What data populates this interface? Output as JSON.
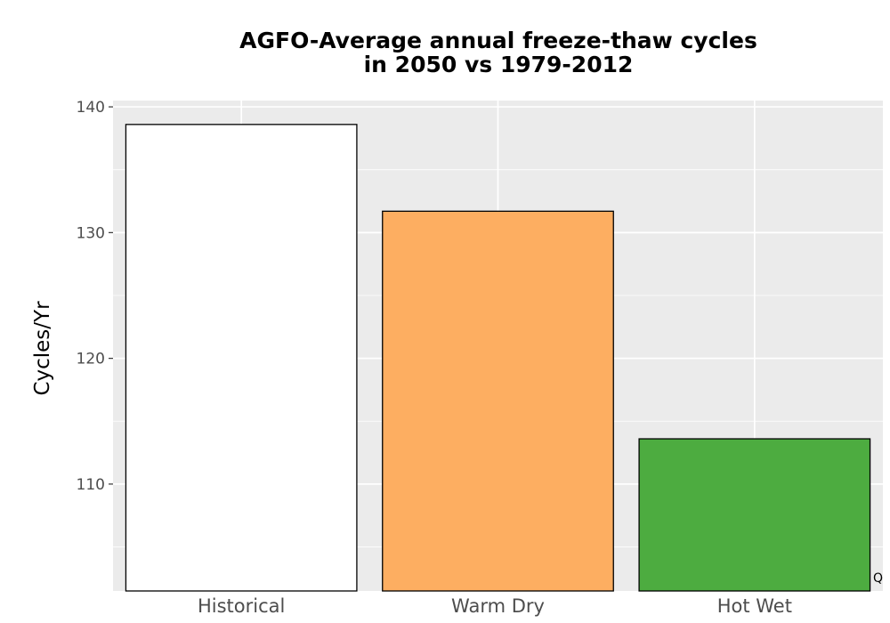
{
  "chart_data": {
    "type": "bar",
    "title": "AGFO-Average annual freeze-thaw cycles\nin 2050 vs 1979-2012",
    "xlabel": "",
    "ylabel": "Cycles/Yr",
    "categories": [
      "Historical",
      "Warm Dry",
      "Hot Wet"
    ],
    "values": [
      138.6,
      131.7,
      113.6
    ],
    "colors": [
      "#ffffff",
      "#fdae61",
      "#4dac40"
    ],
    "ylim": [
      101.5,
      140.5
    ],
    "yticks": [
      110,
      120,
      130,
      140
    ],
    "grid": true,
    "panel_background": "#ebebeb",
    "legend": "none"
  },
  "corner_mark": "Q"
}
